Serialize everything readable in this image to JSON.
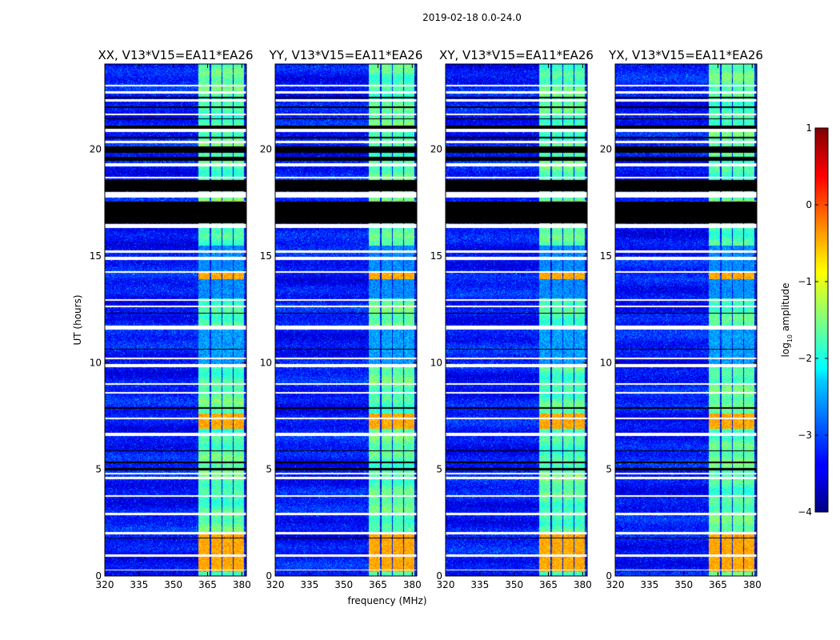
{
  "chart_data": {
    "type": "heatmap",
    "suptitle": "2019-02-18 0.0-24.0",
    "xlabel": "frequency (MHz)",
    "ylabel": "UT (hours)",
    "xlim": [
      320,
      382
    ],
    "ylim": [
      0,
      24
    ],
    "xticks": [
      320,
      335,
      350,
      365,
      380
    ],
    "xtick_labels": [
      "320",
      "335",
      "350",
      "365",
      "380"
    ],
    "yticks": [
      0,
      5,
      10,
      15,
      20
    ],
    "ytick_labels": [
      "0",
      "5",
      "10",
      "15",
      "20"
    ],
    "panels": [
      {
        "title": "XX, V13*V15=EA11*EA26"
      },
      {
        "title": "YY, V13*V15=EA11*EA26"
      },
      {
        "title": "XY, V13*V15=EA11*EA26"
      },
      {
        "title": "YX, V13*V15=EA11*EA26"
      }
    ],
    "colorbar": {
      "label_prefix": "log",
      "label_subscript": "10",
      "label_suffix": " amplitude",
      "range": [
        -4,
        1
      ],
      "ticks": [
        -4,
        -3,
        -2,
        -1,
        0,
        1
      ],
      "tick_labels": [
        "−4",
        "−3",
        "−2",
        "−1",
        "0",
        "1"
      ],
      "colormap": "jet"
    },
    "background_level": -3.3,
    "rfi_bands_mhz": [
      [
        361,
        366
      ],
      [
        366.5,
        371
      ],
      [
        371.5,
        376
      ],
      [
        376.5,
        381
      ]
    ],
    "rfi_band_level_typical": -1.7,
    "strong_rfi_level_max": -0.2,
    "flagged_white_hours": [
      [
        0.25,
        0.3
      ],
      [
        0.9,
        1.0
      ],
      [
        1.95,
        2.05
      ],
      [
        2.85,
        2.95
      ],
      [
        3.7,
        3.8
      ],
      [
        4.55,
        4.65
      ],
      [
        4.75,
        4.85
      ],
      [
        6.55,
        6.7
      ],
      [
        7.35,
        7.42
      ],
      [
        8.55,
        8.62
      ],
      [
        8.95,
        9.05
      ],
      [
        9.8,
        9.95
      ],
      [
        10.15,
        10.22
      ],
      [
        11.55,
        11.75
      ],
      [
        12.6,
        12.68
      ],
      [
        12.9,
        12.97
      ],
      [
        14.2,
        14.28
      ],
      [
        14.8,
        14.95
      ],
      [
        15.15,
        15.25
      ],
      [
        16.3,
        16.5
      ],
      [
        17.75,
        18.0
      ],
      [
        18.65,
        18.72
      ],
      [
        19.2,
        19.35
      ],
      [
        20.3,
        20.4
      ],
      [
        20.8,
        20.95
      ],
      [
        21.6,
        21.68
      ],
      [
        22.25,
        22.35
      ],
      [
        22.6,
        22.72
      ],
      [
        22.95,
        23.02
      ]
    ],
    "flagged_black_hours": [
      [
        1.75,
        1.8
      ],
      [
        4.95,
        5.05
      ],
      [
        5.3,
        5.35
      ],
      [
        5.85,
        5.9
      ],
      [
        7.85,
        7.9
      ],
      [
        10.6,
        10.65
      ],
      [
        12.3,
        12.35
      ],
      [
        16.55,
        17.55
      ],
      [
        18.05,
        18.55
      ],
      [
        19.45,
        19.65
      ],
      [
        19.85,
        20.15
      ],
      [
        20.5,
        20.6
      ],
      [
        20.98,
        21.1
      ],
      [
        21.4,
        21.45
      ],
      [
        21.95,
        22.0
      ],
      [
        22.4,
        22.45
      ]
    ],
    "panel_seeds": [
      11,
      23,
      37,
      51
    ]
  }
}
